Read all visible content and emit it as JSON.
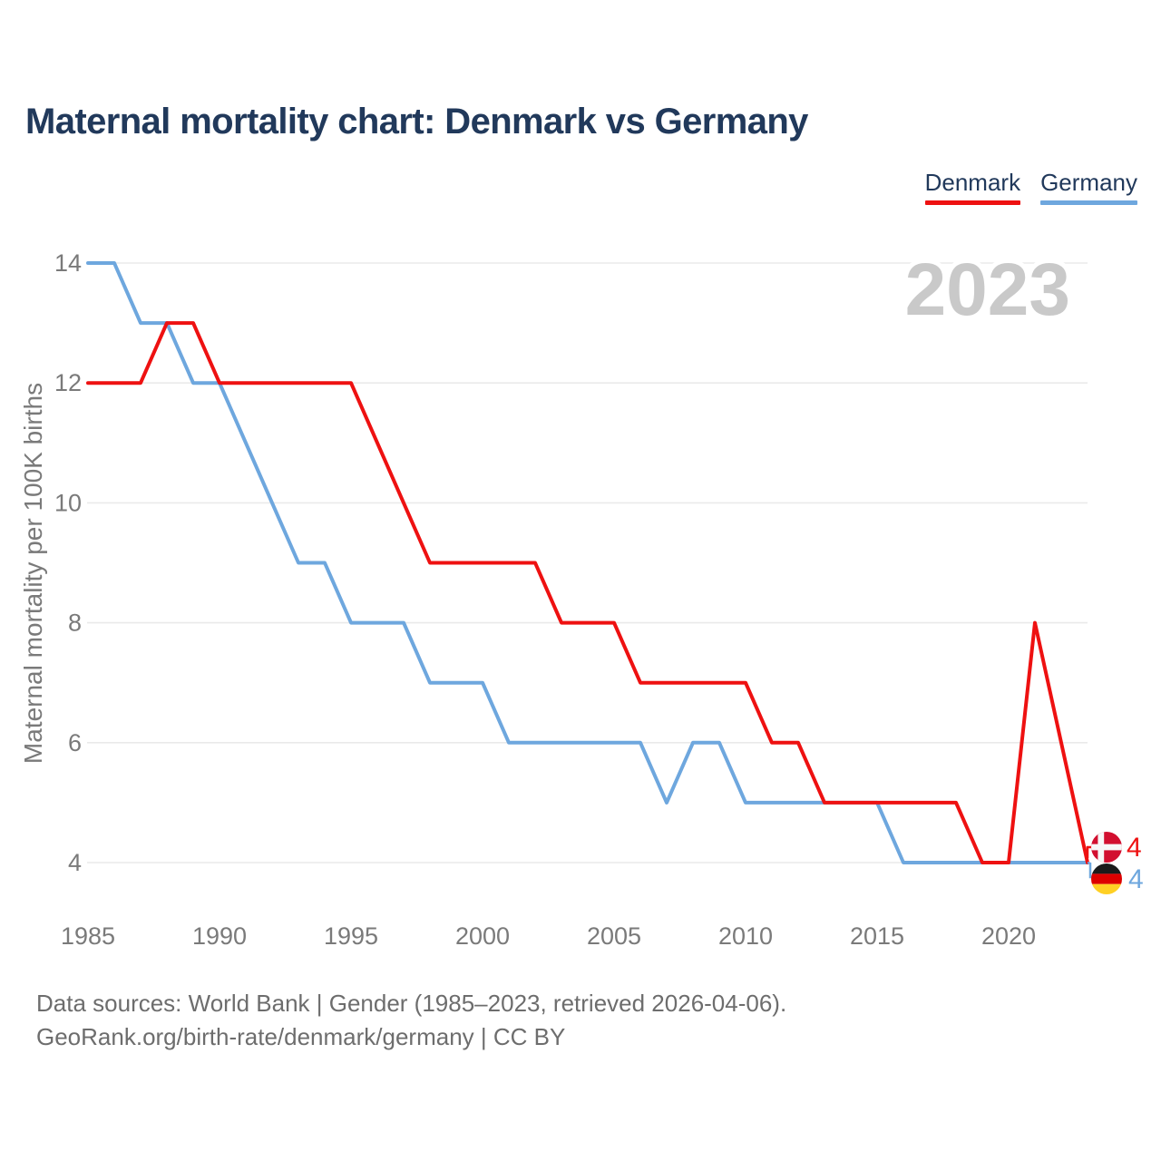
{
  "header": {
    "title": "Maternal mortality chart: Denmark vs Germany"
  },
  "legend": {
    "items": [
      {
        "label": "Denmark",
        "color": "#ee1111"
      },
      {
        "label": "Germany",
        "color": "#6ea7de"
      }
    ]
  },
  "chart_data": {
    "type": "line",
    "title": "Maternal mortality chart: Denmark vs Germany",
    "xlabel": "",
    "ylabel": "Maternal mortality per 100K births",
    "watermark": "2023",
    "xlim": [
      1985,
      2023
    ],
    "ylim": [
      4,
      14
    ],
    "x_ticks": [
      1985,
      1990,
      1995,
      2000,
      2005,
      2010,
      2015,
      2020
    ],
    "y_ticks": [
      4,
      6,
      8,
      10,
      12,
      14
    ],
    "grid": "horizontal",
    "legend_position": "top-right",
    "x": [
      1985,
      1986,
      1987,
      1988,
      1989,
      1990,
      1991,
      1992,
      1993,
      1994,
      1995,
      1996,
      1997,
      1998,
      1999,
      2000,
      2001,
      2002,
      2003,
      2004,
      2005,
      2006,
      2007,
      2008,
      2009,
      2010,
      2011,
      2012,
      2013,
      2014,
      2015,
      2016,
      2017,
      2018,
      2019,
      2020,
      2021,
      2022,
      2023
    ],
    "series": [
      {
        "name": "Denmark",
        "color": "#ee1111",
        "end_label": "4",
        "flag": "denmark",
        "values": [
          12,
          12,
          12,
          13,
          13,
          12,
          12,
          12,
          12,
          12,
          12,
          11,
          10,
          9,
          9,
          9,
          9,
          9,
          8,
          8,
          8,
          7,
          7,
          7,
          7,
          7,
          6,
          6,
          5,
          5,
          5,
          5,
          5,
          5,
          4,
          4,
          8,
          6,
          4
        ]
      },
      {
        "name": "Germany",
        "color": "#6ea7de",
        "end_label": "4",
        "flag": "germany",
        "values": [
          14,
          14,
          13,
          13,
          12,
          12,
          11,
          10,
          9,
          9,
          8,
          8,
          8,
          7,
          7,
          7,
          6,
          6,
          6,
          6,
          6,
          6,
          5,
          6,
          6,
          5,
          5,
          5,
          5,
          5,
          5,
          4,
          4,
          4,
          4,
          4,
          4,
          4,
          4
        ]
      }
    ],
    "flag_colors": {
      "denmark": {
        "field": "#d20f2f",
        "cross": "#f7f7f7"
      },
      "germany": {
        "top": "#1b1b1b",
        "middle": "#dd0000",
        "bottom": "#ffd024"
      }
    }
  },
  "footer": {
    "line1": "Data sources: World Bank | Gender (1985–2023, retrieved 2026-04-06).",
    "line2": "GeoRank.org/birth-rate/denmark/germany | CC BY"
  },
  "colors": {
    "background": "#ffffff",
    "title": "#21395b",
    "axis_text": "#7a7a7a",
    "gridline": "#eaeaea",
    "watermark": "#c9c9c9",
    "footer_text": "#6d6d6d"
  }
}
